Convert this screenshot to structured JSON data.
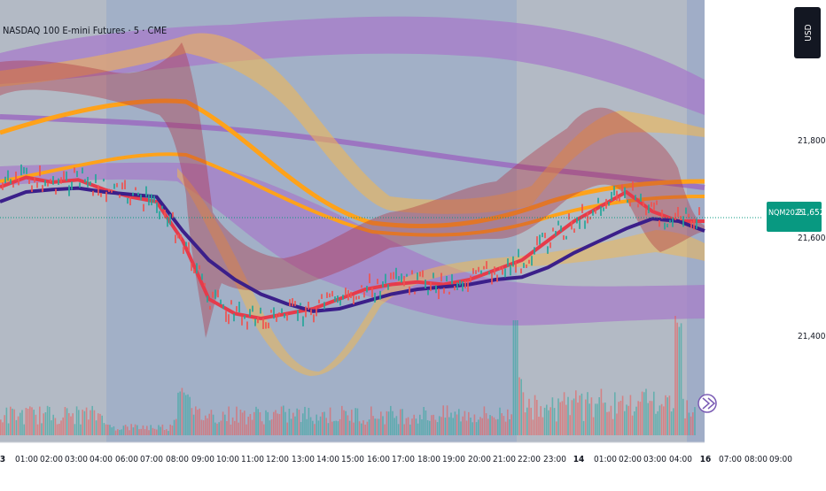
{
  "chart_title": "NASDAQ 100 E-mini Futures · 5 · CME",
  "currency_button": "USD",
  "price_tag": {
    "symbol": "NQM2025",
    "price": "21,652.00",
    "value": 21652,
    "color": "#089981"
  },
  "colors": {
    "background": "#b3bac5",
    "session_highlight": "#8fa3c9",
    "purple_band": "#a77bc9",
    "orange_band": "#f5b84a",
    "navy_line": "#3b1f8a",
    "red_line": "#e63b4b",
    "dark_red_band": "#b0303f",
    "orange_line": "#ffa21a",
    "volume_up": "#26a69a",
    "volume_down": "#ef5350"
  },
  "chart_data": {
    "type": "line",
    "y_axis_ticks": [
      "21,800.00",
      "21,600.00",
      "21,400.00"
    ],
    "y_tick_values": [
      21800,
      21600,
      21400
    ],
    "x_axis_labels": [
      "3",
      "01:00",
      "02:00",
      "03:00",
      "04:00",
      "06:00",
      "07:00",
      "08:00",
      "09:00",
      "10:00",
      "11:00",
      "12:00",
      "13:00",
      "14:00",
      "15:00",
      "16:00",
      "17:00",
      "18:00",
      "19:00",
      "20:00",
      "21:00",
      "22:00",
      "23:00",
      "14",
      "01:00",
      "02:00",
      "03:00",
      "04:00",
      "16",
      "07:00",
      "08:00",
      "09:00"
    ],
    "series": [
      {
        "role": "navy_ma",
        "values": [
          21680,
          21700,
          21705,
          21708,
          21700,
          21695,
          21690,
          21620,
          21560,
          21520,
          21490,
          21470,
          21455,
          21460,
          21475,
          21490,
          21500,
          21505,
          21510,
          21520,
          21525,
          21545,
          21575,
          21600,
          21625,
          21645,
          21640,
          21620
        ]
      },
      {
        "role": "red_ma",
        "values": [
          21710,
          21730,
          21720,
          21725,
          21705,
          21690,
          21680,
          21600,
          21480,
          21450,
          21440,
          21450,
          21460,
          21480,
          21500,
          21510,
          21515,
          21510,
          21520,
          21540,
          21560,
          21600,
          21640,
          21670,
          21700,
          21660,
          21640,
          21640
        ]
      }
    ]
  }
}
